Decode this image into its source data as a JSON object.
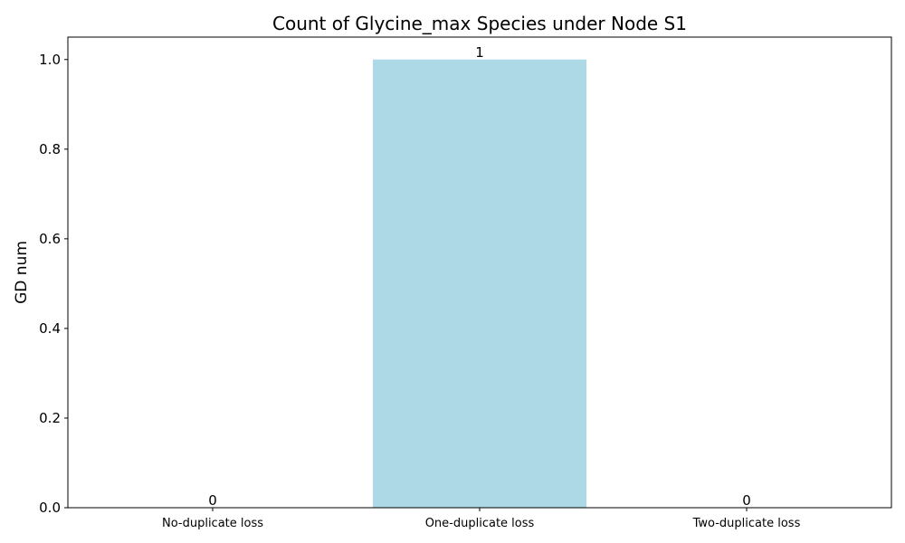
{
  "chart_data": {
    "type": "bar",
    "title": "Count of Glycine_max Species under Node S1",
    "xlabel": "",
    "ylabel": "GD num",
    "categories": [
      "No-duplicate loss",
      "One-duplicate loss",
      "Two-duplicate loss"
    ],
    "values": [
      0,
      1,
      0
    ],
    "data_labels": [
      "0",
      "1",
      "0"
    ],
    "yticks": [
      0.0,
      0.2,
      0.4,
      0.6,
      0.8,
      1.0
    ],
    "ytick_labels": [
      "0.0",
      "0.2",
      "0.4",
      "0.6",
      "0.8",
      "1.0"
    ],
    "ylim": [
      0,
      1.05
    ],
    "bar_color": "#add8e6",
    "grid": false,
    "legend": "none"
  }
}
